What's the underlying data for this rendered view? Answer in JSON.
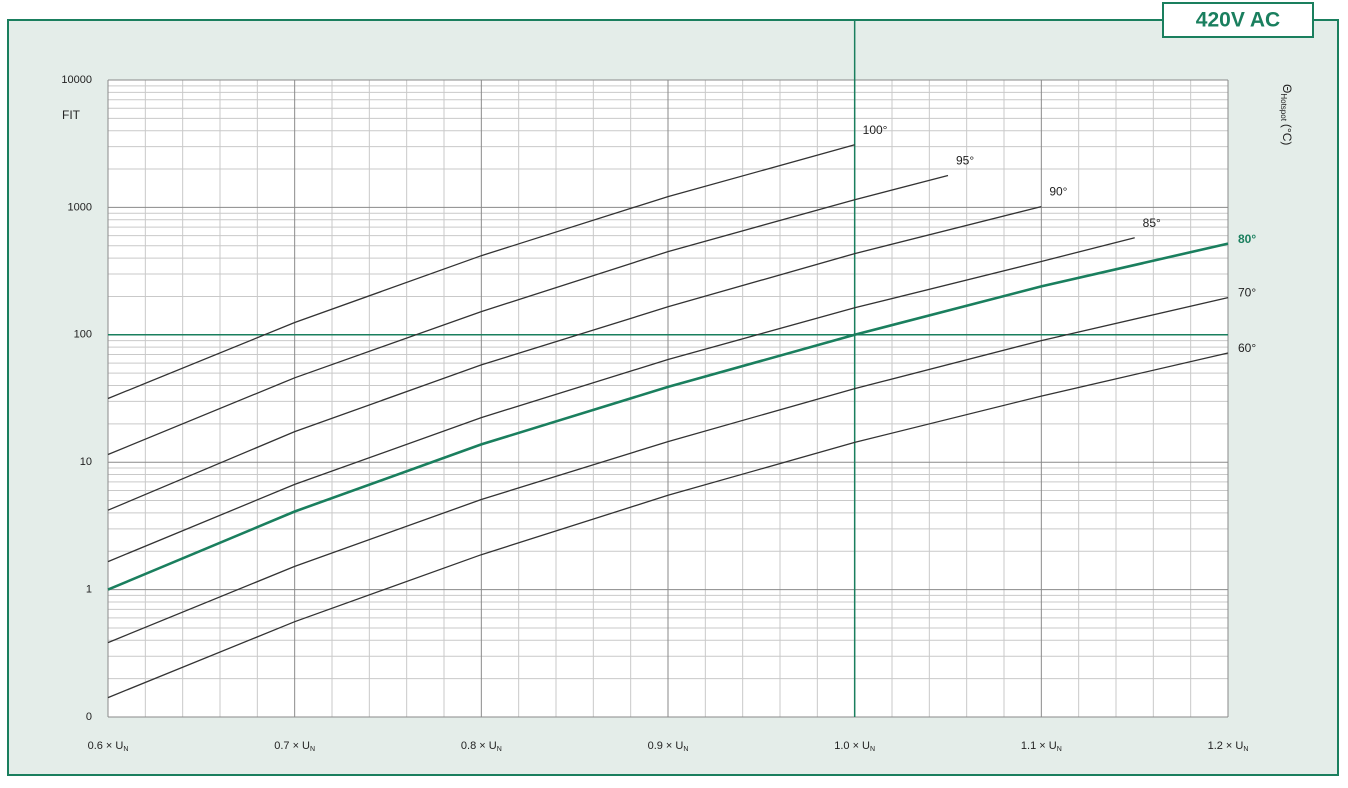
{
  "chart_data": {
    "type": "line",
    "badge": "420V AC",
    "ylabel": "FIT",
    "legend_title": {
      "symbol": "Θ",
      "subscript": "Hotspot",
      "unit": "(°C)"
    },
    "xlim": [
      0.6,
      1.2
    ],
    "xticks": [
      {
        "value": 0.6,
        "label": "0.6 × U"
      },
      {
        "value": 0.7,
        "label": "0.7 × U"
      },
      {
        "value": 0.8,
        "label": "0.8 × U"
      },
      {
        "value": 0.9,
        "label": "0.9 × U"
      },
      {
        "value": 1.0,
        "label": "1.0 × U"
      },
      {
        "value": 1.1,
        "label": "1.1 × U"
      },
      {
        "value": 1.2,
        "label": "1.2 × U"
      }
    ],
    "xtick_subscript": "N",
    "x_minor_divisions": 5,
    "ylim": [
      0.1,
      10000
    ],
    "yticks": [
      {
        "value": 0.1,
        "label": "0"
      },
      1,
      10,
      100,
      1000,
      10000
    ],
    "log_y": true,
    "grid": true,
    "highlight_lines": {
      "x": 1.0,
      "y": 100,
      "color": "#1a7f5e"
    },
    "series": [
      {
        "name": "100°",
        "color": "#333333",
        "x": [
          0.6,
          0.7,
          0.8,
          0.9,
          1.0
        ],
        "values": [
          31.6,
          125,
          418,
          1215,
          3100
        ]
      },
      {
        "name": "95°",
        "color": "#333333",
        "x": [
          0.6,
          0.7,
          0.8,
          0.9,
          1.0,
          1.05
        ],
        "values": [
          11.5,
          46,
          152,
          450,
          1150,
          1780
        ]
      },
      {
        "name": "90°",
        "color": "#333333",
        "x": [
          0.6,
          0.7,
          0.8,
          0.9,
          1.0,
          1.1
        ],
        "values": [
          4.2,
          17.4,
          58,
          166,
          434,
          1015
        ]
      },
      {
        "name": "85°",
        "color": "#333333",
        "x": [
          0.6,
          0.7,
          0.8,
          0.9,
          1.0,
          1.1,
          1.15
        ],
        "values": [
          1.66,
          6.7,
          22.4,
          64,
          163,
          376,
          578
        ]
      },
      {
        "name": "80°",
        "color": "#1a7f5e",
        "bold": true,
        "x": [
          0.6,
          0.7,
          0.8,
          0.9,
          1.0,
          1.1,
          1.2
        ],
        "values": [
          1,
          4.1,
          13.8,
          39,
          100,
          240,
          520
        ]
      },
      {
        "name": "70°",
        "color": "#333333",
        "x": [
          0.6,
          0.7,
          0.8,
          0.9,
          1.0,
          1.1,
          1.2
        ],
        "values": [
          0.384,
          1.52,
          5.1,
          14.5,
          37.8,
          90,
          196
        ]
      },
      {
        "name": "60°",
        "color": "#333333",
        "x": [
          0.6,
          0.7,
          0.8,
          0.9,
          1.0,
          1.1,
          1.2
        ],
        "values": [
          0.142,
          0.56,
          1.88,
          5.5,
          14.3,
          33,
          72
        ]
      }
    ]
  }
}
